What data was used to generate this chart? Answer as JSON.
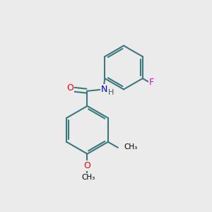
{
  "background_color": "#ebebeb",
  "bond_color": "#3a7a7a",
  "bond_width": 1.5,
  "atom_colors": {
    "O": "#ff0000",
    "N": "#0000ee",
    "F": "#dd00dd",
    "C": "#000000",
    "H": "#555555"
  },
  "font_size": 8.5,
  "fig_size": [
    3.0,
    3.0
  ],
  "dpi": 100,
  "inner_circle_ratio": 0.62
}
